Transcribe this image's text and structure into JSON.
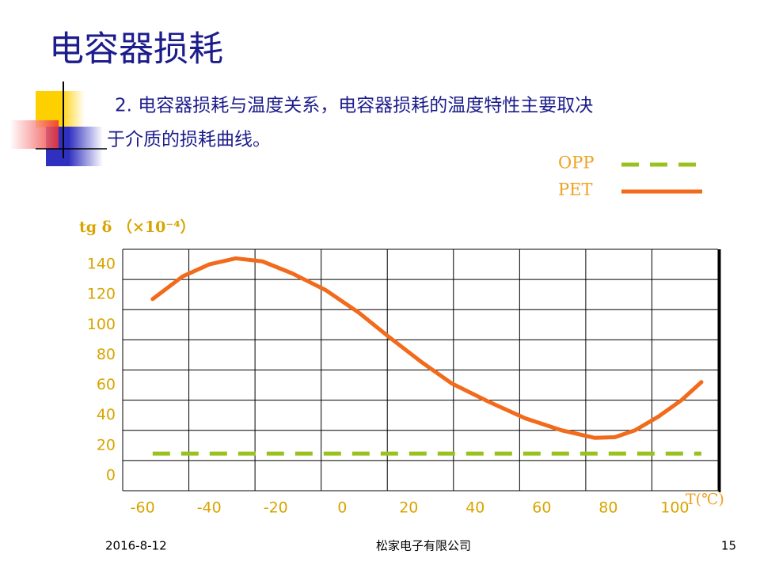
{
  "slide_title": "电容器损耗",
  "body_lines": [
    "2. 电容器损耗与温度关系，电容器损耗的温度特性主要取决",
    "于介质的损耗曲线。"
  ],
  "footer": {
    "date": "2016-8-12",
    "company": "松家电子有限公司",
    "page": "15"
  },
  "chart_data": {
    "type": "line",
    "y_label": "tg δ （×10⁻⁴）",
    "x_label": "T(℃)",
    "xlim": [
      -66,
      113
    ],
    "xticks": [
      -60,
      -40,
      -20,
      0,
      20,
      40,
      60,
      80,
      100
    ],
    "ylim": [
      -10,
      150
    ],
    "yticks": [
      0,
      20,
      40,
      60,
      80,
      100,
      120,
      140
    ],
    "legend": "top-right",
    "series": [
      {
        "name": "OPP",
        "color": "#99c21e",
        "dash": true,
        "x": [
          -57,
          108
        ],
        "values": [
          14.6,
          14.6
        ]
      },
      {
        "name": "PET",
        "color": "#f26a1b",
        "dash": false,
        "x": [
          -57,
          -48,
          -40,
          -32,
          -24,
          -15,
          -5,
          5,
          14,
          24,
          33,
          44,
          55,
          66,
          76,
          82,
          88,
          95,
          102,
          108
        ],
        "values": [
          117,
          132,
          140,
          144,
          142,
          134,
          123,
          108,
          92,
          75,
          61,
          49,
          38,
          30,
          25,
          25.5,
          30,
          39,
          50,
          62
        ]
      }
    ]
  }
}
